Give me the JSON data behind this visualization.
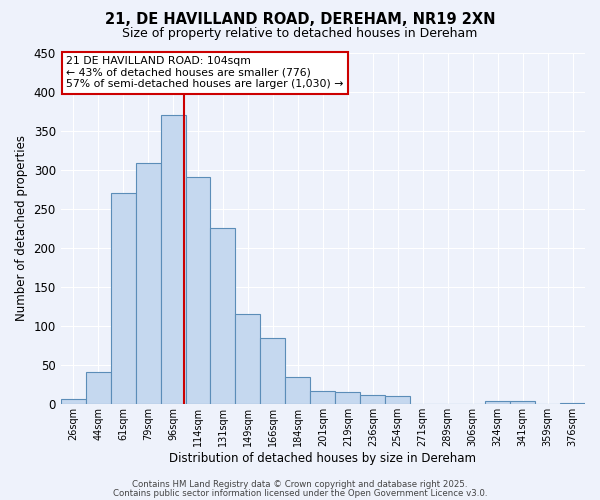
{
  "title": "21, DE HAVILLAND ROAD, DEREHAM, NR19 2XN",
  "subtitle": "Size of property relative to detached houses in Dereham",
  "xlabel": "Distribution of detached houses by size in Dereham",
  "ylabel": "Number of detached properties",
  "bar_color": "#c5d8ef",
  "bar_edge_color": "#5b8db8",
  "background_color": "#eef2fb",
  "grid_color": "#ffffff",
  "bin_labels": [
    "26sqm",
    "44sqm",
    "61sqm",
    "79sqm",
    "96sqm",
    "114sqm",
    "131sqm",
    "149sqm",
    "166sqm",
    "184sqm",
    "201sqm",
    "219sqm",
    "236sqm",
    "254sqm",
    "271sqm",
    "289sqm",
    "306sqm",
    "324sqm",
    "341sqm",
    "359sqm",
    "376sqm"
  ],
  "bar_values": [
    7,
    41,
    270,
    309,
    370,
    291,
    226,
    115,
    85,
    35,
    17,
    16,
    12,
    11,
    0,
    0,
    0,
    4,
    4,
    0,
    2
  ],
  "vline_color": "#cc0000",
  "vline_pos": 4.44,
  "ylim": [
    0,
    450
  ],
  "yticks": [
    0,
    50,
    100,
    150,
    200,
    250,
    300,
    350,
    400,
    450
  ],
  "annotation_line1": "21 DE HAVILLAND ROAD: 104sqm",
  "annotation_line2": "← 43% of detached houses are smaller (776)",
  "annotation_line3": "57% of semi-detached houses are larger (1,030) →",
  "footnote1": "Contains HM Land Registry data © Crown copyright and database right 2025.",
  "footnote2": "Contains public sector information licensed under the Open Government Licence v3.0."
}
